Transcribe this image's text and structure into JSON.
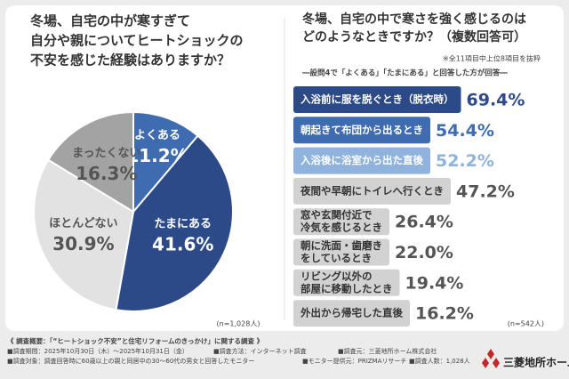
{
  "chart_data": [
    {
      "type": "pie",
      "title": [
        "冬場、自宅の中が寒すぎて",
        "自分や親についてヒートショックの",
        "不安を感じた経験はありますか？"
      ],
      "categories": [
        "よくある",
        "たまにある",
        "ほとんどない",
        "まったくない"
      ],
      "values": [
        11.2,
        41.6,
        30.9,
        16.3
      ],
      "value_labels": [
        "11.2%",
        "41.6%",
        "30.9%",
        "16.3%"
      ],
      "colors": [
        "#3f6bb0",
        "#2b4a87",
        "#e2e2e2",
        "#a3a3a3"
      ],
      "note": "(n=1,028人)"
    },
    {
      "type": "bar",
      "title": [
        "冬場、自宅の中で寒さを強く感じるのは",
        "どのようなときですか？（複数回答可）"
      ],
      "subtitle": [
        "※全11項目中上位8項目を抜粋",
        "―設問4で「よくある」「たまにある」と回答した方が回答―"
      ],
      "categories": [
        [
          "入浴前に服を脱ぐとき（脱衣時）"
        ],
        [
          "朝起きて布団から出るとき"
        ],
        [
          "入浴後に浴室から出た直後"
        ],
        [
          "夜間や早朝にトイレへ行くとき"
        ],
        [
          "窓や玄関付近で",
          "冷気を感じるとき"
        ],
        [
          "朝に洗面・歯磨き",
          "をしているとき"
        ],
        [
          "リビング以外の",
          "部屋に移動したとき"
        ],
        [
          "外出から帰宅した直後"
        ]
      ],
      "values": [
        69.4,
        54.4,
        52.2,
        47.2,
        26.4,
        22.0,
        19.4,
        16.2
      ],
      "value_labels": [
        "69.4%",
        "54.4%",
        "52.2%",
        "47.2%",
        "26.4%",
        "22.0%",
        "19.4%",
        "16.2%"
      ],
      "colors": [
        "#2b4a87",
        "#3f6bb0",
        "#8fb3dc",
        "#d2d2d2",
        "#d2d2d2",
        "#d2d2d2",
        "#d2d2d2",
        "#d2d2d2"
      ],
      "note": "(n=542人)"
    }
  ],
  "footer": {
    "heading": "《 調査概要：「“ヒートショック不安”と住宅リフォームのきっかけ」に関する調査 》",
    "items": [
      "■調査期間：2025年10月30日（木）〜2025年10月31日（金）",
      "■調査方法：インターネット調査",
      "■調査元：三菱地所ホーム株式会社",
      "■調査対象：調査回答時に60歳以上の親と同居中の30〜60代の男女と回答したモニター",
      "■モニター提供元：PRIZMAリサーチ",
      "■調査人数：1,028人"
    ],
    "logo": "三菱地所ホーム"
  }
}
